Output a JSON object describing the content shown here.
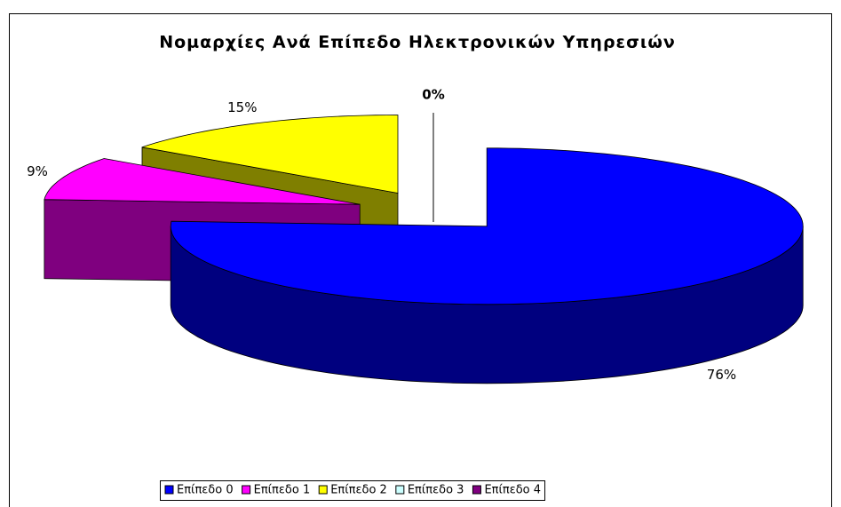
{
  "chart_data": {
    "type": "pie",
    "title": "Νομαρχίες Ανά Επίπεδο Ηλεκτρονικών Υπηρεσιών",
    "categories": [
      "Επίπεδο 0",
      "Επίπεδο 1",
      "Επίπεδο 2",
      "Επίπεδο 3",
      "Επίπεδο 4"
    ],
    "values": [
      76,
      9,
      15,
      0,
      0
    ],
    "value_labels": [
      "76%",
      "9%",
      "15%",
      "0%",
      null
    ],
    "colors": [
      "#0000ff",
      "#ff00ff",
      "#ffff00",
      "#ccffff",
      "#800080"
    ],
    "legend": "bottom"
  }
}
